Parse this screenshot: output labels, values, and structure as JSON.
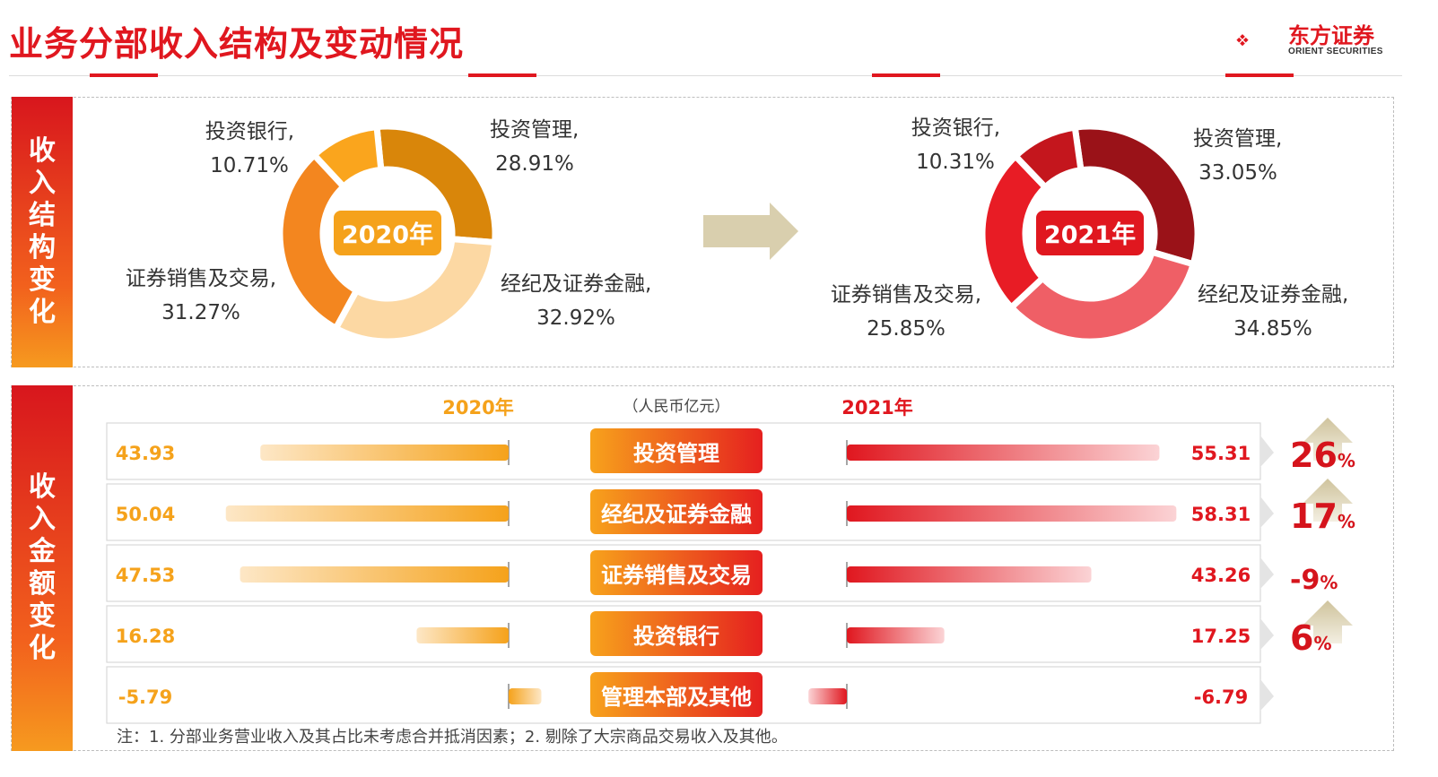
{
  "title": "业务分部收入结构及变动情况",
  "logo": {
    "cn": "东方证券",
    "en": "ORIENT SECURITIES"
  },
  "colors": {
    "red": "#e0171f",
    "orange": "#f5a21b",
    "arrow": "#d9cfae"
  },
  "section1": {
    "label": "收入结构变化"
  },
  "section2": {
    "label": "收入金额变化"
  },
  "chart_data": [
    {
      "type": "pie",
      "title": "2020年",
      "slices": [
        {
          "name": "投资管理",
          "pct_label": "28.91%",
          "value": 28.91,
          "color": "#d9860a"
        },
        {
          "name": "经纪及证券金融",
          "pct_label": "32.92%",
          "value": 32.92,
          "color": "#fcd8a3"
        },
        {
          "name": "证券销售及交易",
          "pct_label": "31.27%",
          "value": 31.27,
          "color": "#f3861f"
        },
        {
          "name": "投资银行",
          "pct_label": "10.71%",
          "value": 10.71,
          "color": "#faa51d"
        }
      ]
    },
    {
      "type": "pie",
      "title": "2021年",
      "slices": [
        {
          "name": "投资管理",
          "pct_label": "33.05%",
          "value": 33.05,
          "color": "#9a1218"
        },
        {
          "name": "经纪及证券金融",
          "pct_label": "34.85%",
          "value": 34.85,
          "color": "#ef5f66"
        },
        {
          "name": "证券销售及交易",
          "pct_label": "25.85%",
          "value": 25.85,
          "color": "#e81c25"
        },
        {
          "name": "投资银行",
          "pct_label": "10.31%",
          "value": 10.31,
          "color": "#c4161d"
        }
      ]
    },
    {
      "type": "bar",
      "unit_label": "（人民币亿元）",
      "series_labels": [
        "2020年",
        "2021年"
      ],
      "categories": [
        "投资管理",
        "经纪及证券金融",
        "证券销售及交易",
        "投资银行",
        "管理本部及其他"
      ],
      "values_2020": [
        43.93,
        50.04,
        47.53,
        16.28,
        -5.79
      ],
      "values_2020_labels": [
        "43.93",
        "50.04",
        "47.53",
        "16.28",
        "-5.79"
      ],
      "values_2021": [
        55.31,
        58.31,
        43.26,
        17.25,
        -6.79
      ],
      "values_2021_labels": [
        "55.31",
        "58.31",
        "43.26",
        "17.25",
        "-6.79"
      ],
      "changes": [
        {
          "num": "26",
          "unit": "%",
          "dir": "up"
        },
        {
          "num": "17",
          "unit": "%",
          "dir": "up"
        },
        {
          "num": "-9",
          "unit": "%",
          "dir": "none"
        },
        {
          "num": "6",
          "unit": "%",
          "dir": "up"
        },
        {
          "num": "",
          "unit": "",
          "dir": "none"
        }
      ]
    }
  ],
  "note": "注：1. 分部业务营业收入及其占比未考虑合并抵消因素；2. 剔除了大宗商品交易收入及其他。"
}
